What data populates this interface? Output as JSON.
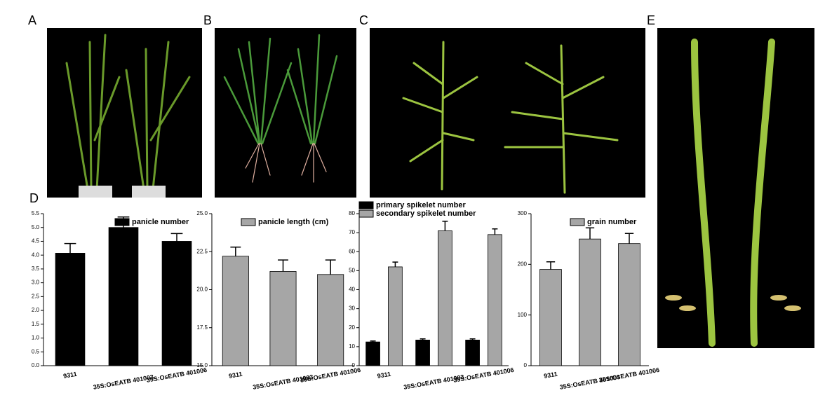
{
  "panel_labels": [
    "A",
    "B",
    "C",
    "D",
    "E"
  ],
  "chart_data": [
    {
      "type": "bar",
      "categories": [
        "9311",
        "35S:OsEATB 401003",
        "35S:OsEATB 401006"
      ],
      "series": [
        {
          "name": "panicle number",
          "color": "#000000",
          "values": [
            4.07,
            5.0,
            4.5
          ],
          "errors": [
            0.35,
            0.38,
            0.28
          ]
        }
      ],
      "ylim": [
        0,
        5.5
      ],
      "yticks": [
        {
          "value": 0,
          "label": "0.0"
        },
        {
          "value": 0.5,
          "label": "0.5"
        },
        {
          "value": 1,
          "label": "1.0"
        },
        {
          "value": 1.5,
          "label": "1.5"
        },
        {
          "value": 2,
          "label": "2.0"
        },
        {
          "value": 2.5,
          "label": "2.5"
        },
        {
          "value": 3,
          "label": "3.0"
        },
        {
          "value": 3.5,
          "label": "3.5"
        },
        {
          "value": 4,
          "label": "4.0"
        },
        {
          "value": 4.5,
          "label": "4.5"
        },
        {
          "value": 5,
          "label": "5.0"
        },
        {
          "value": 5.5,
          "label": "5.5"
        }
      ],
      "legend": "upper right"
    },
    {
      "type": "bar",
      "categories": [
        "9311",
        "35S:OsEATB 401003",
        "35S:OsEATB 401006"
      ],
      "series": [
        {
          "name": "panicle length (cm)",
          "color": "#a6a6a6",
          "values": [
            22.2,
            21.2,
            21.0
          ],
          "errors": [
            0.6,
            0.75,
            0.95
          ]
        }
      ],
      "ylim": [
        15,
        25
      ],
      "yticks": [
        {
          "value": 15,
          "label": "15.0"
        },
        {
          "value": 17.5,
          "label": "17.5"
        },
        {
          "value": 20,
          "label": "20.0"
        },
        {
          "value": 22.5,
          "label": "22.5"
        },
        {
          "value": 25,
          "label": "25.0"
        }
      ],
      "legend": "upper right"
    },
    {
      "type": "bar",
      "categories": [
        "9311",
        "35S:OsEATB 401003",
        "35S:OsEATB 401006"
      ],
      "series": [
        {
          "name": "primary spikelet number",
          "color": "#000000",
          "values": [
            12.5,
            13.5,
            13.5
          ],
          "errors": [
            0.5,
            0.6,
            0.6
          ]
        },
        {
          "name": "secondary spikelet number",
          "color": "#a6a6a6",
          "values": [
            52,
            71,
            69
          ],
          "errors": [
            2.5,
            5,
            3
          ]
        }
      ],
      "ylim": [
        0,
        80
      ],
      "yticks": [
        0,
        10,
        20,
        30,
        40,
        50,
        60,
        70,
        80
      ],
      "legend": "top"
    },
    {
      "type": "bar",
      "categories": [
        "9311",
        "35S:OsEATB 401003",
        "35S:OsEATB 401006"
      ],
      "series": [
        {
          "name": "grain number",
          "color": "#a6a6a6",
          "values": [
            190,
            250,
            241
          ],
          "errors": [
            15,
            22,
            20
          ]
        }
      ],
      "ylim": [
        0,
        300
      ],
      "yticks": [
        0,
        100,
        200,
        300
      ],
      "legend": "upper right"
    }
  ]
}
